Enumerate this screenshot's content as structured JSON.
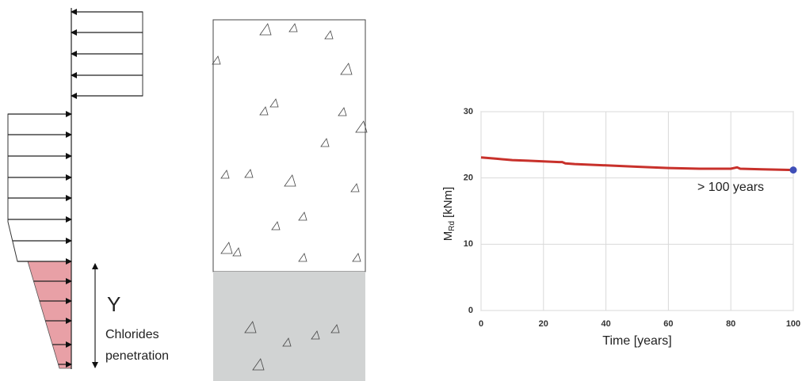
{
  "chart_data": {
    "type": "line",
    "x_label": "Time [years]",
    "y_label": "M",
    "y_label_sub": "Rd",
    "y_label_unit": "[kNm]",
    "annotation": "> 100 years",
    "x": [
      0,
      5,
      10,
      15,
      20,
      25,
      26,
      27,
      30,
      40,
      50,
      60,
      70,
      80,
      82,
      83,
      90,
      100
    ],
    "series": [
      {
        "color": "#c8312b",
        "values": [
          23.1,
          22.9,
          22.7,
          22.6,
          22.5,
          22.4,
          22.4,
          22.2,
          22.1,
          21.9,
          21.7,
          21.5,
          21.4,
          21.4,
          21.6,
          21.4,
          21.3,
          21.2
        ]
      }
    ],
    "end_marker_color": "#3f4fb8",
    "xlim": [
      0,
      100
    ],
    "xticks": [
      0,
      20,
      40,
      60,
      80,
      100
    ],
    "ylim": [
      0,
      30
    ],
    "yticks": [
      0,
      10,
      20,
      30
    ],
    "grid": true
  },
  "diagram": {
    "y_label": "Y",
    "caption": [
      "Chlorides",
      "penetration"
    ]
  }
}
